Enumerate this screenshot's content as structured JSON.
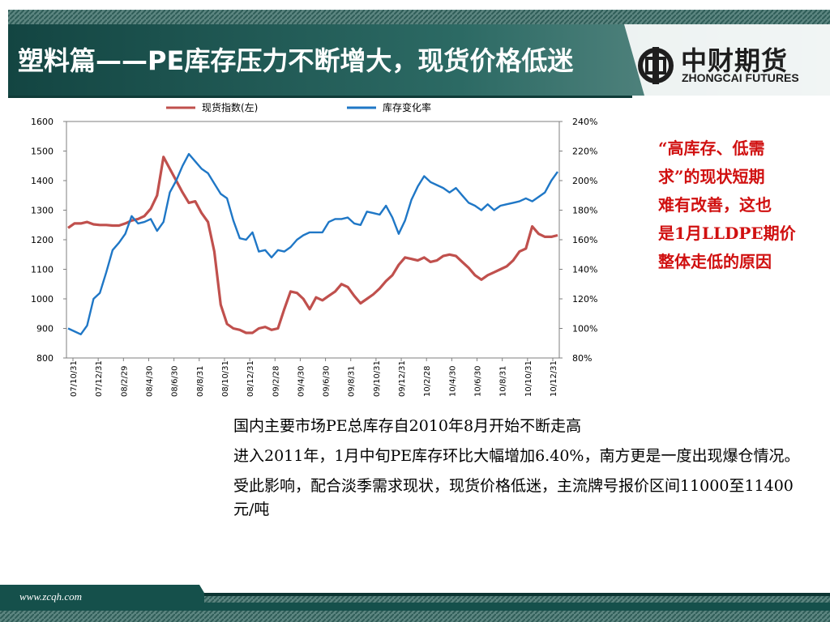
{
  "header": {
    "title": "塑料篇——PE库存压力不断增大，现货价格低迷",
    "logo_cn": "中财期货",
    "logo_en": "ZHONGCAI FUTURES"
  },
  "chart_data": {
    "type": "line",
    "legend": "top",
    "grid": false,
    "x_ticks": [
      "07/10/31",
      "07/12/31",
      "08/2/29",
      "08/4/30",
      "08/6/30",
      "08/8/31",
      "08/10/31",
      "08/12/31",
      "09/2/28",
      "09/4/30",
      "09/6/30",
      "09/8/31",
      "09/10/31",
      "09/12/31",
      "10/2/28",
      "10/4/30",
      "10/6/30",
      "10/8/31",
      "10/10/31",
      "10/12/31"
    ],
    "y_left": {
      "min": 800,
      "max": 1600,
      "ticks": [
        "1600",
        "1500",
        "1400",
        "1300",
        "1200",
        "1100",
        "1000",
        "900",
        "800"
      ]
    },
    "y_right": {
      "min": 80,
      "max": 240,
      "ticks": [
        "240%",
        "220%",
        "200%",
        "180%",
        "160%",
        "140%",
        "120%",
        "100%",
        "80%"
      ]
    },
    "series": [
      {
        "name": "现货指数(左)",
        "axis": "left",
        "color": "#c0504d",
        "values": [
          1240,
          1255,
          1255,
          1260,
          1252,
          1250,
          1250,
          1248,
          1248,
          1255,
          1265,
          1270,
          1280,
          1305,
          1350,
          1480,
          1440,
          1400,
          1360,
          1325,
          1330,
          1290,
          1260,
          1160,
          980,
          915,
          900,
          895,
          885,
          885,
          900,
          905,
          895,
          900,
          965,
          1025,
          1020,
          1000,
          965,
          1005,
          995,
          1010,
          1025,
          1050,
          1040,
          1010,
          985,
          1000,
          1015,
          1035,
          1060,
          1080,
          1115,
          1140,
          1135,
          1130,
          1140,
          1125,
          1130,
          1145,
          1150,
          1145,
          1125,
          1105,
          1080,
          1065,
          1080,
          1090,
          1100,
          1110,
          1130,
          1160,
          1170,
          1245,
          1220,
          1210,
          1210,
          1215
        ]
      },
      {
        "name": "库存变化率",
        "axis": "right",
        "color": "#1f77c6",
        "values": [
          100,
          98,
          96,
          102,
          120,
          124,
          138,
          153,
          158,
          164,
          176,
          171,
          172,
          174,
          166,
          172,
          192,
          200,
          210,
          218,
          213,
          208,
          205,
          198,
          191,
          188,
          173,
          161,
          160,
          165,
          152,
          153,
          148,
          153,
          152,
          155,
          160,
          163,
          165,
          165,
          165,
          172,
          174,
          174,
          175,
          171,
          170,
          179,
          178,
          177,
          183,
          175,
          164,
          173,
          187,
          196,
          203,
          199,
          197,
          195,
          192,
          195,
          190,
          185,
          183,
          180,
          184,
          180,
          183,
          184,
          185,
          186,
          188,
          186,
          189,
          192,
          200,
          206
        ]
      }
    ]
  },
  "side_note": {
    "lines": [
      "“高库存、低需",
      "求”的现状短期",
      "难有改善，这也",
      "是1月LLDPE期价",
      "整体走低的原因"
    ]
  },
  "body": {
    "paragraphs": [
      "国内主要市场PE总库存自2010年8月开始不断走高",
      "进入2011年，1月中旬PE库存环比大幅增加6.40%，南方更是一度出现爆仓情况。",
      "受此影响，配合淡季需求现状，现货价格低迷，主流牌号报价区间11000至11400元/吨"
    ]
  },
  "footer": {
    "url": "www.zcqh.com"
  },
  "colors": {
    "header_dark": "#174a47",
    "header_teal": "#3f7d77",
    "red_text": "#d01010"
  }
}
